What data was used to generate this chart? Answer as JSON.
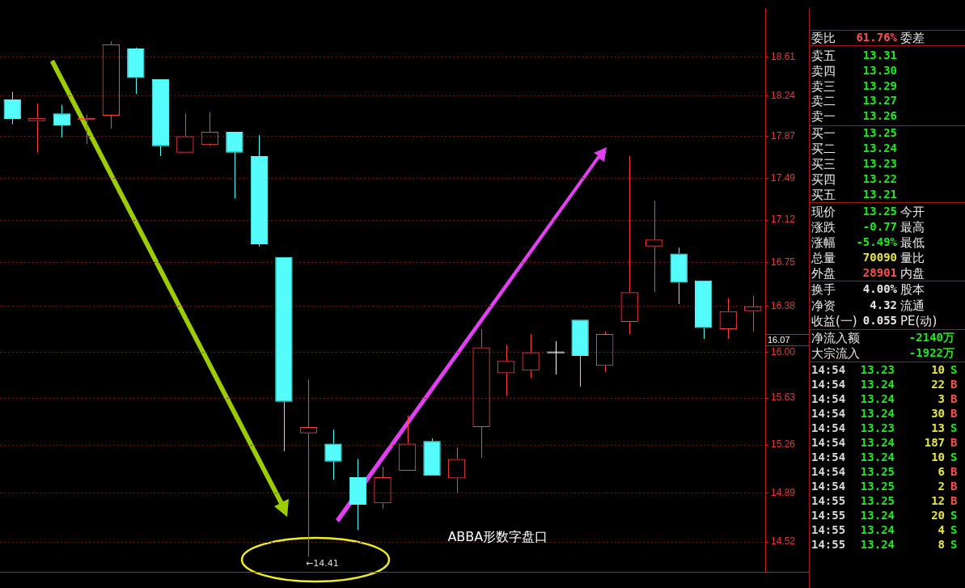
{
  "chart_data": {
    "type": "candlestick",
    "categories": [
      null,
      null,
      null,
      null,
      null,
      null,
      null,
      null,
      null,
      null,
      null,
      null,
      null,
      null,
      null,
      null,
      null,
      null,
      null,
      null,
      null,
      null,
      null,
      null,
      null,
      null,
      null,
      null,
      null,
      null,
      null
    ],
    "ohlc": [
      [
        18.21,
        18.28,
        17.98,
        18.03
      ],
      [
        18.01,
        18.17,
        17.72,
        18.04
      ],
      [
        18.08,
        18.16,
        17.86,
        17.97
      ],
      [
        18.02,
        18.07,
        17.8,
        18.04
      ],
      [
        18.06,
        18.76,
        17.94,
        18.73
      ],
      [
        18.69,
        18.7,
        18.26,
        18.41
      ],
      [
        18.4,
        18.4,
        17.69,
        17.78
      ],
      [
        17.72,
        18.08,
        17.72,
        17.87
      ],
      [
        17.79,
        18.09,
        17.78,
        17.91
      ],
      [
        17.91,
        17.91,
        17.31,
        17.72
      ],
      [
        17.69,
        17.88,
        16.89,
        16.91
      ],
      [
        16.8,
        16.8,
        15.21,
        15.6
      ],
      [
        15.35,
        15.78,
        14.41,
        15.4
      ],
      [
        15.27,
        15.38,
        14.99,
        15.13
      ],
      [
        15.01,
        15.15,
        14.61,
        14.8
      ],
      [
        14.81,
        15.09,
        14.77,
        15.01
      ],
      [
        15.06,
        15.49,
        15.06,
        15.27
      ],
      [
        15.29,
        15.31,
        15.02,
        15.02
      ],
      [
        15.0,
        15.24,
        14.89,
        15.15
      ],
      [
        15.4,
        16.19,
        15.16,
        16.04
      ],
      [
        15.83,
        16.06,
        15.65,
        15.93
      ],
      [
        15.85,
        16.15,
        15.79,
        16.0
      ],
      [
        16.0,
        16.09,
        15.82,
        16.0
      ],
      [
        16.27,
        16.27,
        15.72,
        15.97
      ],
      [
        15.89,
        16.17,
        15.84,
        16.15
      ],
      [
        16.25,
        17.69,
        16.15,
        16.5
      ],
      [
        16.89,
        17.29,
        16.5,
        16.95
      ],
      [
        16.83,
        16.88,
        16.4,
        16.58
      ],
      [
        16.6,
        16.6,
        16.11,
        16.2
      ],
      [
        16.19,
        16.45,
        16.11,
        16.34
      ],
      [
        16.34,
        16.47,
        16.17,
        16.38
      ]
    ],
    "colors": [
      "#54fcfc",
      "#ff4040",
      "#54fcfc",
      "#ff4040",
      "#ff4040",
      "#54fcfc",
      "#54fcfc",
      "#ff4040",
      "#ff4040",
      "#54fcfc",
      "#54fcfc",
      "#54fcfc",
      "#ff4040",
      "#54fcfc",
      "#54fcfc",
      "#ff4040",
      "#ff4040",
      "#54fcfc",
      "#ff4040",
      "#ff4040",
      "#ff4040",
      "#ff4040",
      "#ffffff",
      "#54fcfc",
      "#ff4040",
      "#ff4040",
      "#ff4040",
      "#54fcfc",
      "#54fcfc",
      "#ff4040",
      "#ff4040"
    ],
    "ylim": [
      14.3,
      19.08
    ],
    "yticks": [
      14.52,
      14.89,
      15.26,
      15.63,
      {
        "value": 16,
        "label": "16.00"
      },
      16.38,
      16.75,
      17.12,
      17.49,
      17.87,
      18.24,
      18.61
    ],
    "log": true,
    "grid": "y",
    "tick_labels": "y",
    "annotations": [
      "ABBA形数字盘口",
      "←14.41",
      "16.07",
      "委比",
      "61.76%",
      "委差",
      "卖五",
      "13.31",
      "卖四",
      "13.30",
      "卖三",
      "13.29",
      "卖二",
      "13.27",
      "卖一",
      "13.26",
      "买一",
      "13.25",
      "买二",
      "13.24",
      "买三",
      "13.23",
      "买四",
      "13.22",
      "买五",
      "13.21",
      "现价",
      "13.25",
      "今开",
      "涨跌",
      "-0.77",
      "最高",
      "涨幅",
      "-5.49%",
      "最低",
      "总量",
      "70090",
      "量比",
      "外盘",
      "28901",
      "内盘",
      "换手",
      "4.00%",
      "股本",
      "净资",
      "4.32",
      "流通",
      "收益(一)",
      "0.055",
      "PE(动)",
      "净流入额",
      "-2140万",
      "大宗流入",
      "-1922万",
      "14:54",
      "13.23",
      "10",
      "S",
      "14:54",
      "13.24",
      "22",
      "B",
      "14:54",
      "13.24",
      "3",
      "B",
      "14:54",
      "13.24",
      "30",
      "B",
      "14:54",
      "13.23",
      "13",
      "S",
      "14:54",
      "13.24",
      "187",
      "B",
      "14:54",
      "13.24",
      "10",
      "S",
      "14:54",
      "13.25",
      "6",
      "B",
      "14:54",
      "13.25",
      "2",
      "B",
      "14:55",
      "13.25",
      "12",
      "B",
      "14:55",
      "13.24",
      "20",
      "S",
      "14:55",
      "13.24",
      "4",
      "S",
      "14:55",
      "13.24",
      "8",
      "S"
    ]
  }
}
